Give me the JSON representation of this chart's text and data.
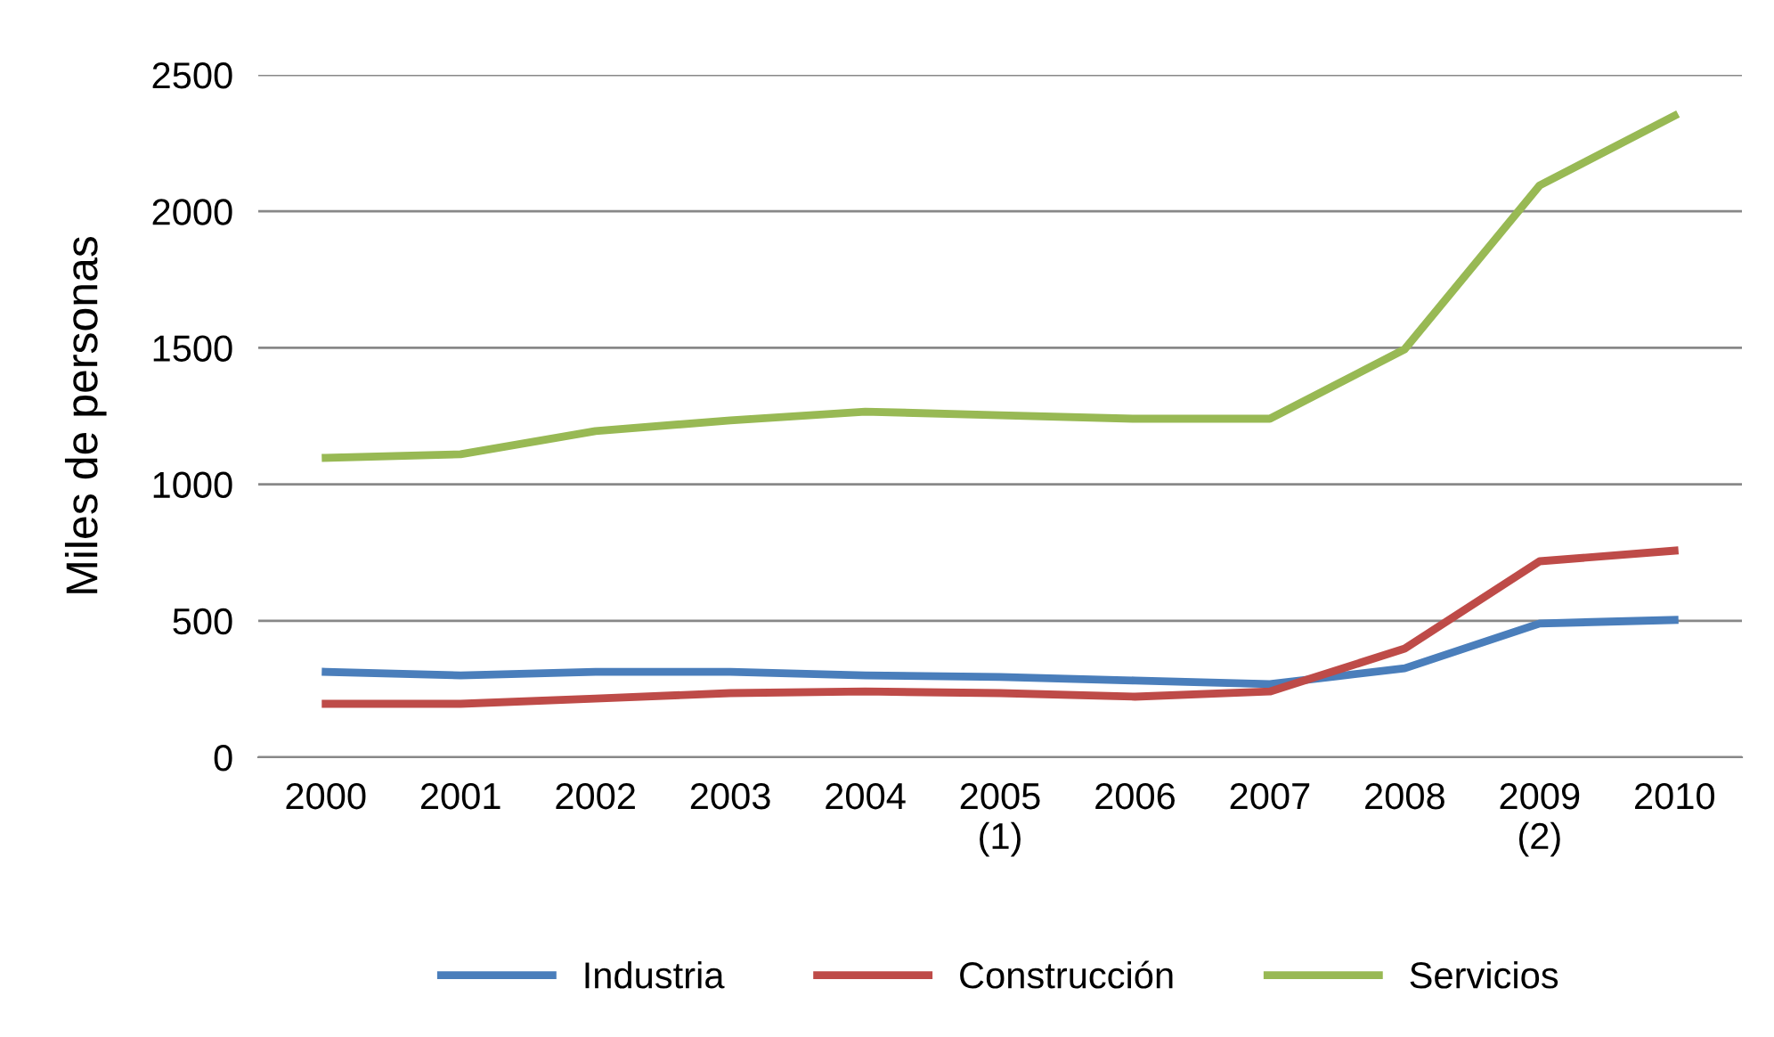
{
  "chart_data": {
    "type": "line",
    "ylabel": "Miles de personas",
    "categories": [
      "2000",
      "2001",
      "2002",
      "2003",
      "2004",
      "2005\n(1)",
      "2006",
      "2007",
      "2008",
      "2009\n(2)",
      "2010"
    ],
    "series": [
      {
        "name": "Industria",
        "color": "#4a7ebb",
        "values": [
          313,
          300,
          313,
          313,
          300,
          294,
          281,
          268,
          326,
          490,
          503
        ]
      },
      {
        "name": "Construcción",
        "color": "#be4b48",
        "values": [
          196,
          196,
          215,
          235,
          241,
          235,
          222,
          241,
          398,
          718,
          757
        ]
      },
      {
        "name": "Servicios",
        "color": "#98b954",
        "values": [
          1097,
          1110,
          1195,
          1234,
          1266,
          1253,
          1240,
          1240,
          1495,
          2095,
          2350
        ]
      }
    ],
    "ylim": [
      0,
      2500
    ],
    "yticks": [
      0,
      500,
      1000,
      1500,
      2000,
      2500
    ],
    "grid": "y",
    "legend": "bottom",
    "marker": "none",
    "line_style": "solid"
  }
}
